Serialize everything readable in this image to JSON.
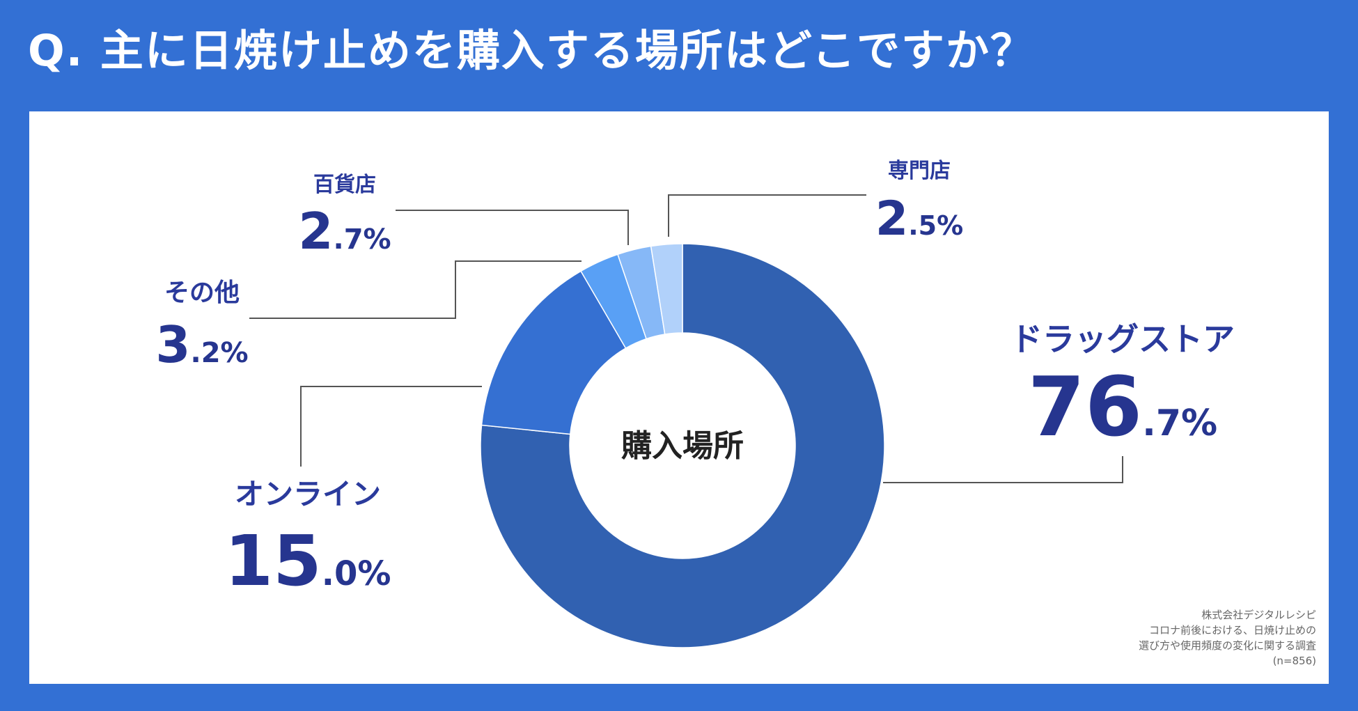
{
  "header": {
    "title": "Q.  主に日焼け止めを購入する場所はどこですか？"
  },
  "chart_data": {
    "type": "pie",
    "title": "Q.  主に日焼け止めを購入する場所はどこですか？",
    "center_label": "購入場所",
    "unit": "%",
    "slices": [
      {
        "label": "ドラッグストア",
        "value": 76.7,
        "int": "76",
        "dec": ".7%",
        "color": "#3161b1"
      },
      {
        "label": "オンライン",
        "value": 15.0,
        "int": "15",
        "dec": ".0%",
        "color": "#3570d2"
      },
      {
        "label": "その他",
        "value": 3.2,
        "int": "3",
        "dec": ".2%",
        "color": "#59a0f5"
      },
      {
        "label": "百貨店",
        "value": 2.7,
        "int": "2",
        "dec": ".7%",
        "color": "#86b8f7"
      },
      {
        "label": "専門店",
        "value": 2.5,
        "int": "2",
        "dec": ".5%",
        "color": "#b1d1fa"
      }
    ],
    "legend": "none"
  },
  "source": {
    "line1": "株式会社デジタルレシピ",
    "line2": "コロナ前後における、日焼け止めの",
    "line3": "選び方や使用頻度の変化に関する調査",
    "line4": "(n=856)"
  },
  "colors": {
    "background": "#3370d4",
    "panel": "#ffffff",
    "label_text": "#26358f",
    "leader_line": "#555555"
  }
}
